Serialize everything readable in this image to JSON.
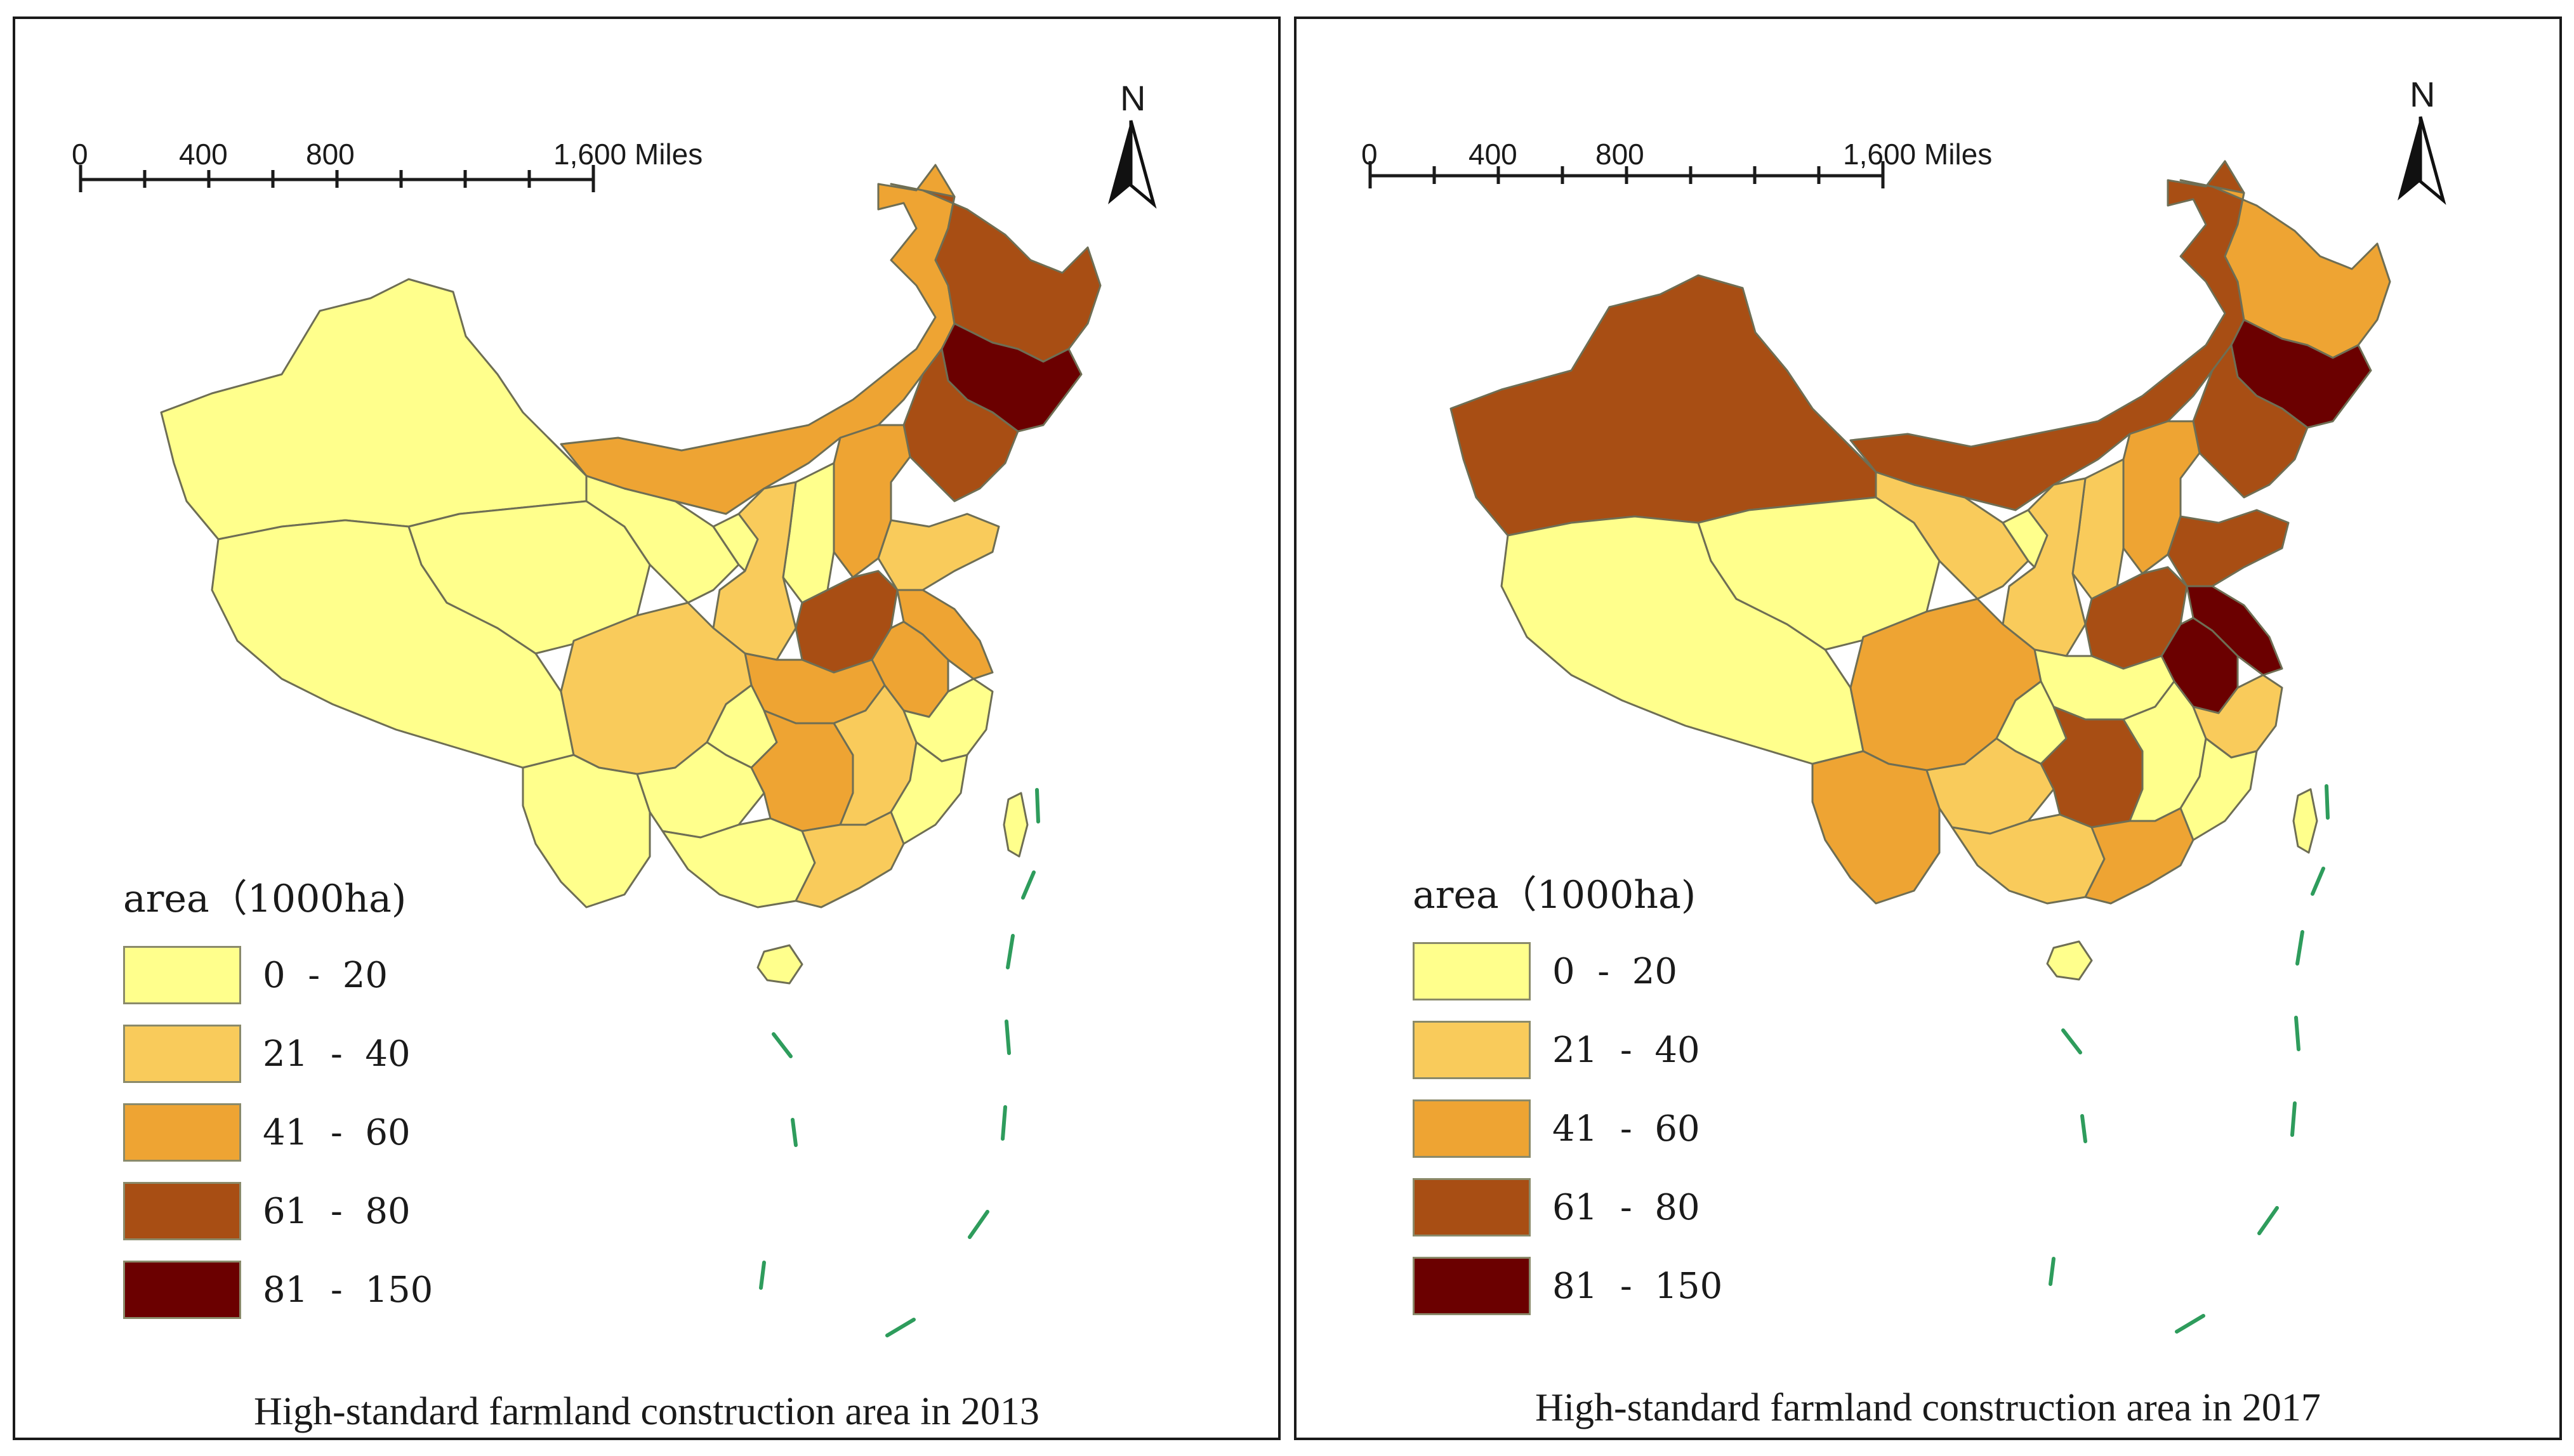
{
  "legend": {
    "title": "area（1000ha)",
    "classes": [
      {
        "label": "0  -  20",
        "color": "#FFFF8C"
      },
      {
        "label": "21  -  40",
        "color": "#F9CB5B"
      },
      {
        "label": "41  -  60",
        "color": "#EEA433"
      },
      {
        "label": "61  -  80",
        "color": "#A84E14"
      },
      {
        "label": "81  -  150",
        "color": "#6B0000"
      }
    ]
  },
  "scale_bar": {
    "labels": [
      "0",
      "400",
      "800",
      "1,600 Miles"
    ]
  },
  "north_arrow": {
    "label": "N"
  },
  "maps": [
    {
      "caption": "High-standard farmland construction area in 2013",
      "region_classes": {
        "heilongjiang": 3,
        "inner-mongolia": 2,
        "jilin": 4,
        "liaoning": 3,
        "xinjiang": 0,
        "tibet": 0,
        "qinghai": 0,
        "gansu": 0,
        "ningxia": 0,
        "shaanxi": 1,
        "shanxi": 0,
        "hebei": 2,
        "shandong": 1,
        "henan": 3,
        "jiangsu": 2,
        "anhui": 2,
        "hubei": 2,
        "sichuan": 1,
        "chongqing": 0,
        "yunnan": 0,
        "guizhou": 0,
        "hunan": 2,
        "jiangxi": 1,
        "zhejiang": 0,
        "fujian": 0,
        "guangxi": 0,
        "guangdong": 1,
        "hainan": 0,
        "taiwan": 0
      }
    },
    {
      "caption": "High-standard farmland construction area in 2017",
      "region_classes": {
        "heilongjiang": 2,
        "inner-mongolia": 3,
        "jilin": 4,
        "liaoning": 3,
        "xinjiang": 3,
        "tibet": 0,
        "qinghai": 0,
        "gansu": 1,
        "ningxia": 0,
        "shaanxi": 1,
        "shanxi": 1,
        "hebei": 2,
        "shandong": 3,
        "henan": 3,
        "jiangsu": 4,
        "anhui": 4,
        "hubei": 0,
        "sichuan": 2,
        "chongqing": 0,
        "yunnan": 2,
        "guizhou": 1,
        "hunan": 3,
        "jiangxi": 0,
        "zhejiang": 1,
        "fujian": 0,
        "guangxi": 1,
        "guangdong": 2,
        "hainan": 0,
        "taiwan": 0
      }
    }
  ]
}
